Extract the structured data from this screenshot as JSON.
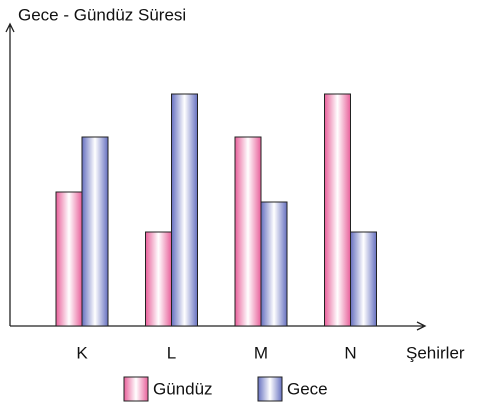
{
  "chart_data": {
    "type": "bar",
    "title": "Gece - Gündüz Süresi",
    "x_label": "Şehirler",
    "categories": [
      "K",
      "L",
      "M",
      "N"
    ],
    "series": [
      {
        "name": "Gündüz",
        "color": "#e8609a",
        "values": [
          134,
          94,
          189,
          232
        ]
      },
      {
        "name": "Gece",
        "color": "#6670c0",
        "values": [
          189,
          232,
          124,
          94
        ]
      }
    ],
    "ylim": [
      0,
      298
    ]
  }
}
